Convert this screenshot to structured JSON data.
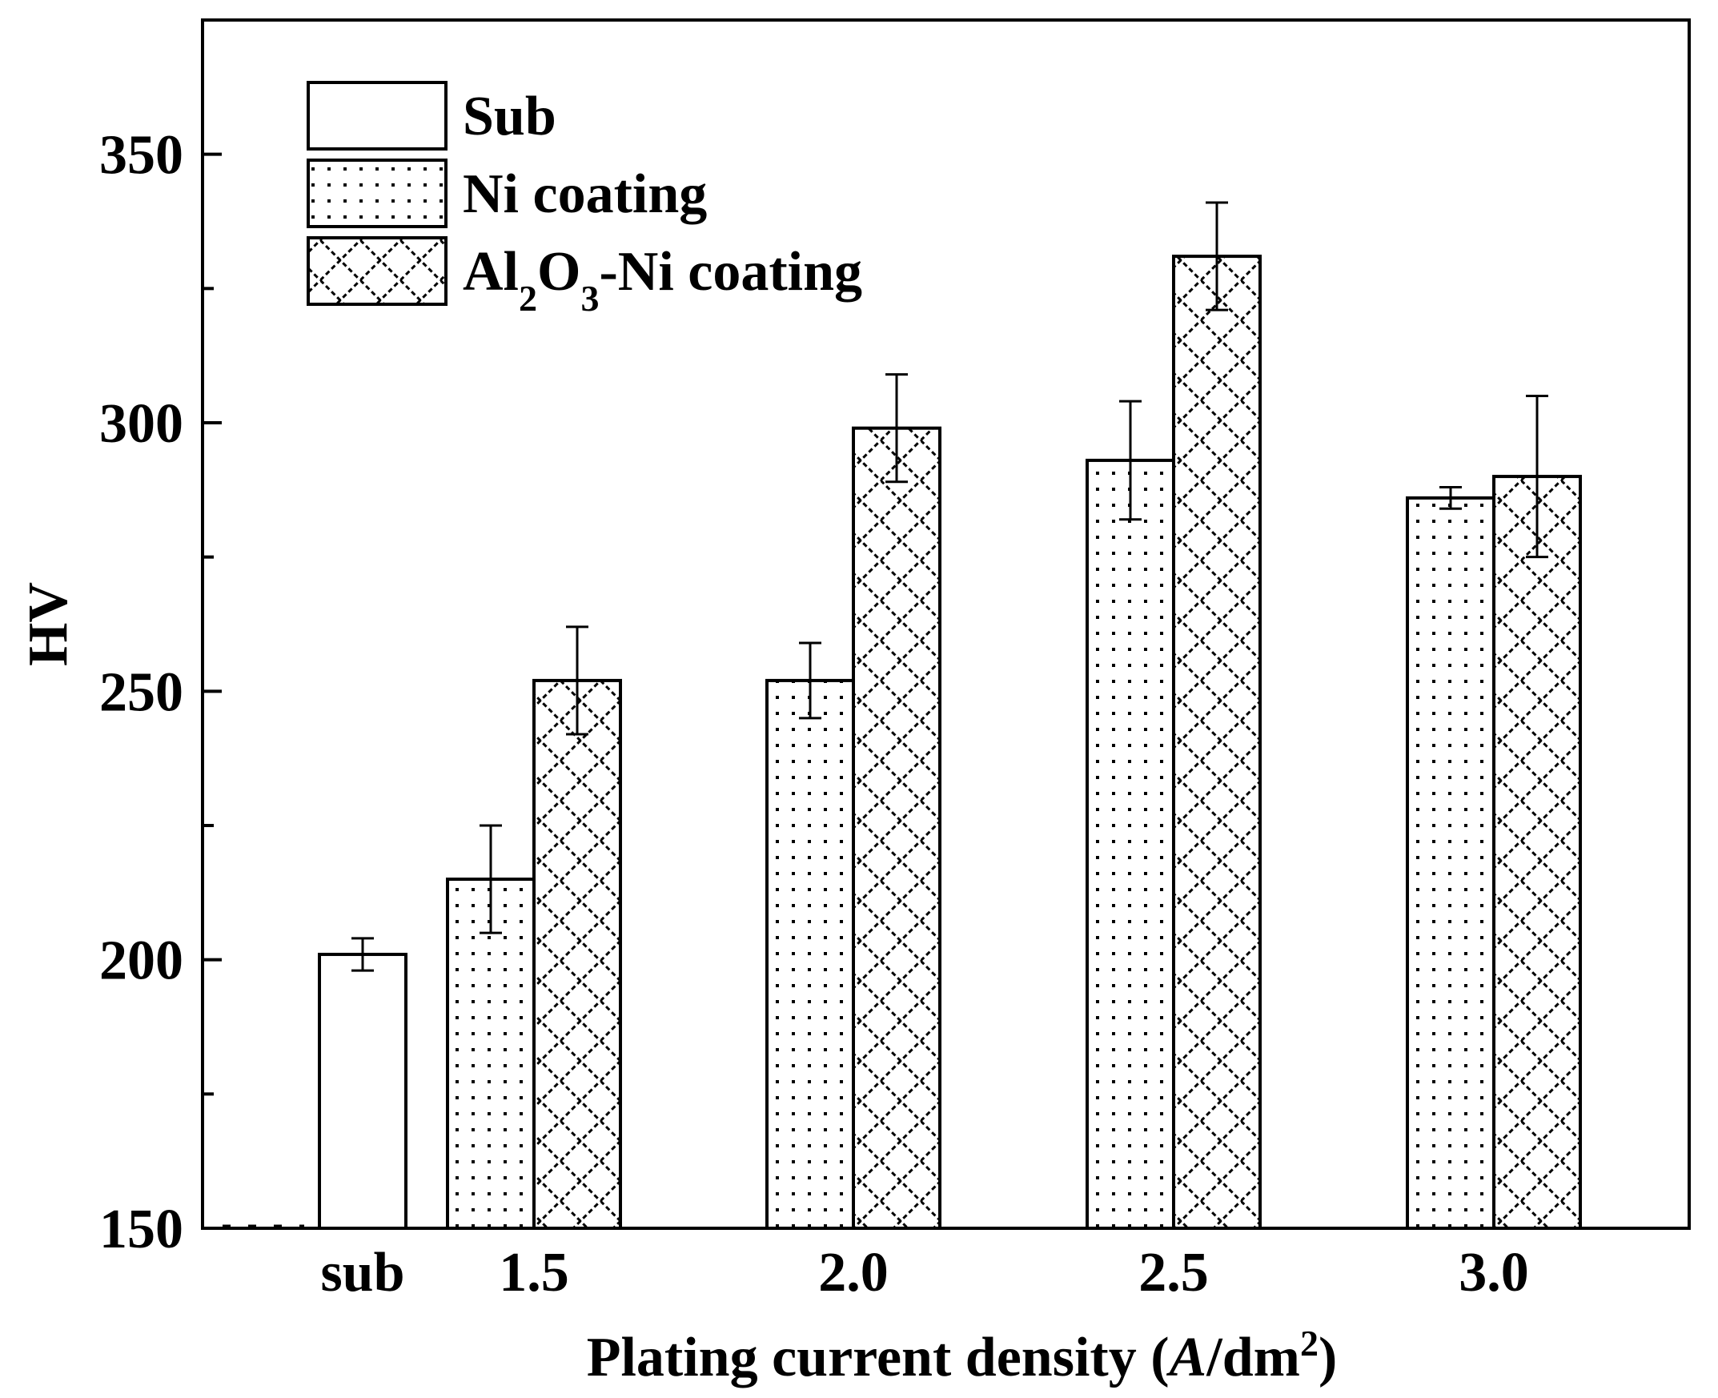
{
  "chart_data": {
    "type": "bar",
    "categories": [
      "sub",
      "1.5",
      "2.0",
      "2.5",
      "3.0"
    ],
    "series": [
      {
        "name": "Sub",
        "pattern": "empty",
        "values": [
          201,
          null,
          null,
          null,
          null
        ],
        "errors": [
          3,
          null,
          null,
          null,
          null
        ]
      },
      {
        "name": "Ni coating",
        "pattern": "dots",
        "values": [
          null,
          215,
          252,
          293,
          286
        ],
        "errors": [
          null,
          10,
          7,
          11,
          2
        ]
      },
      {
        "name": "Al2O3-Ni coating",
        "pattern": "diagonal-cross",
        "values": [
          null,
          252,
          299,
          331,
          290
        ],
        "errors": [
          null,
          10,
          10,
          10,
          15
        ]
      }
    ],
    "legend": [
      {
        "key": "sub",
        "label": "Sub"
      },
      {
        "key": "ni",
        "label": "Ni coating"
      },
      {
        "key": "al",
        "label_parts": [
          "Al",
          "2",
          "O",
          "3",
          "-Ni coating"
        ]
      }
    ],
    "title": "",
    "xlabel_parts": [
      "Plating current density (",
      "A",
      "/dm",
      "2",
      ")"
    ],
    "ylabel": "HV",
    "ylim": [
      150,
      375
    ],
    "yticks": [
      150,
      200,
      250,
      300,
      350
    ],
    "legend_position": "top-left",
    "grid": false,
    "colors": {
      "bar_fill": "#ffffff",
      "stroke": "#000000"
    }
  }
}
